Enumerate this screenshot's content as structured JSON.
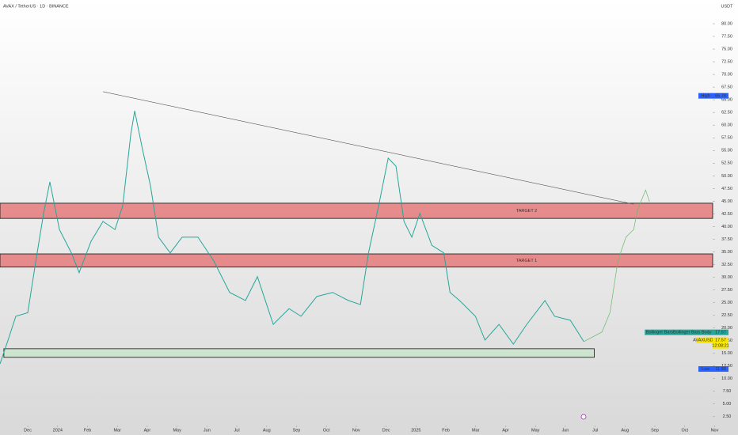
{
  "chart_data": {
    "type": "line",
    "title": "AVAX / TetherUS · 1D · BINANCE",
    "currency": "USDT",
    "x": [
      -0.93,
      -0.66,
      -0.4,
      0,
      0.27,
      0.53,
      0.74,
      1.06,
      1.46,
      1.72,
      2.12,
      2.52,
      2.92,
      3.18,
      3.45,
      3.58,
      3.85,
      4.11,
      4.38,
      4.77,
      5.17,
      5.7,
      6.23,
      6.76,
      7.29,
      7.69,
      8.22,
      8.75,
      9.15,
      9.68,
      10.21,
      10.74,
      11.14,
      11.41,
      11.75,
      12.07,
      12.33,
      12.6,
      12.86,
      13.13,
      13.53,
      13.93,
      14.14,
      14.46,
      14.99,
      15.31,
      15.78,
      16.26,
      16.71,
      17.32,
      17.64,
      18.17,
      18.62
    ],
    "series": [
      {
        "color": "#26a69a",
        "values": [
          12.9,
          17.6,
          22.3,
          23,
          33.2,
          42.6,
          48.8,
          39.4,
          34.8,
          30.9,
          37.1,
          41,
          39.4,
          44.1,
          58.2,
          62.8,
          55,
          48,
          37.9,
          34.8,
          37.9,
          37.9,
          33.2,
          27,
          25.4,
          30.1,
          20.7,
          23.8,
          22.3,
          26.2,
          27,
          25.4,
          24.6,
          34.8,
          44.1,
          53.5,
          51.9,
          41,
          37.9,
          42.6,
          36.3,
          34.8,
          27,
          25.4,
          22.3,
          17.6,
          20.7,
          16.8,
          20.7,
          25.4,
          22.3,
          21.5,
          17.3
        ]
      }
    ],
    "projection": {
      "color": "#66bb6a",
      "x": [
        18.62,
        19.23,
        19.5,
        19.76,
        20.03,
        20.29,
        20.42,
        20.69,
        20.82
      ],
      "values": [
        17.3,
        19.2,
        23.1,
        33.2,
        37.9,
        39.4,
        43.3,
        47.2,
        44.9
      ]
    },
    "xlim": [
      -0.93,
      23.2
    ],
    "ylim": [
      0.75,
      84.68
    ],
    "xticks": [
      {
        "value": 0,
        "label": "Dec"
      },
      {
        "value": 1,
        "label": "2024"
      },
      {
        "value": 2,
        "label": "Feb"
      },
      {
        "value": 3,
        "label": "Mar"
      },
      {
        "value": 4,
        "label": "Apr"
      },
      {
        "value": 5,
        "label": "May"
      },
      {
        "value": 6,
        "label": "Jun"
      },
      {
        "value": 7,
        "label": "Jul"
      },
      {
        "value": 8,
        "label": "Aug"
      },
      {
        "value": 9,
        "label": "Sep"
      },
      {
        "value": 10,
        "label": "Oct"
      },
      {
        "value": 11,
        "label": "Nov"
      },
      {
        "value": 12,
        "label": "Dec"
      },
      {
        "value": 13,
        "label": "2025"
      },
      {
        "value": 14,
        "label": "Feb"
      },
      {
        "value": 15,
        "label": "Mar"
      },
      {
        "value": 16,
        "label": "Apr"
      },
      {
        "value": 17,
        "label": "May"
      },
      {
        "value": 18,
        "label": "Jun"
      },
      {
        "value": 19,
        "label": "Jul"
      },
      {
        "value": 20,
        "label": "Aug"
      },
      {
        "value": 21,
        "label": "Sep"
      },
      {
        "value": 22,
        "label": "Oct"
      },
      {
        "value": 23,
        "label": "Nov"
      }
    ],
    "yticks": [
      {
        "value": 2.5,
        "label": "2.50"
      },
      {
        "value": 5,
        "label": "5.00"
      },
      {
        "value": 7.5,
        "label": "7.50"
      },
      {
        "value": 10,
        "label": "10.00"
      },
      {
        "value": 12.5,
        "label": "12.50"
      },
      {
        "value": 15,
        "label": "15.00"
      },
      {
        "value": 17.5,
        "label": "17.50"
      },
      {
        "value": 20,
        "label": "20.00"
      },
      {
        "value": 22.5,
        "label": "22.50"
      },
      {
        "value": 25,
        "label": "25.00"
      },
      {
        "value": 27.5,
        "label": "27.50"
      },
      {
        "value": 30,
        "label": "30.00"
      },
      {
        "value": 32.5,
        "label": "32.50"
      },
      {
        "value": 35,
        "label": "35.00"
      },
      {
        "value": 37.5,
        "label": "37.50"
      },
      {
        "value": 40,
        "label": "40.00"
      },
      {
        "value": 42.5,
        "label": "42.50"
      },
      {
        "value": 45,
        "label": "45.00"
      },
      {
        "value": 47.5,
        "label": "47.50"
      },
      {
        "value": 50,
        "label": "50.00"
      },
      {
        "value": 52.5,
        "label": "52.50"
      },
      {
        "value": 55,
        "label": "55.00"
      },
      {
        "value": 57.5,
        "label": "57.50"
      },
      {
        "value": 60,
        "label": "60.00"
      },
      {
        "value": 62.5,
        "label": "62.50"
      },
      {
        "value": 65,
        "label": "65.00"
      },
      {
        "value": 67.5,
        "label": "67.50"
      },
      {
        "value": 70,
        "label": "70.00"
      },
      {
        "value": 72.5,
        "label": "72.50"
      },
      {
        "value": 75,
        "label": "75.00"
      },
      {
        "value": 77.5,
        "label": "77.50"
      },
      {
        "value": 80,
        "label": "80.00"
      }
    ],
    "zones": [
      {
        "label": "TARGET 2",
        "range": [
          41.6,
          44.6
        ],
        "color": "#e57373"
      },
      {
        "label": "TARGET 1",
        "range": [
          32.0,
          34.6
        ],
        "color": "#e57373"
      },
      {
        "xrange": [
          -0.8,
          18.97
        ],
        "range": [
          14.2,
          15.9
        ],
        "color": "#c8e6c9"
      }
    ],
    "trendline": {
      "x": [
        2.52,
        20.29
      ],
      "values": [
        66.6,
        44.4
      ]
    },
    "price_labels": [
      {
        "label": "High",
        "value": 65.78,
        "color": "#2962ff"
      },
      {
        "label": "Low",
        "value": 11.9,
        "value_label": "11.90",
        "color": "#2962ff"
      },
      {
        "label": "Bollinger BarsBollinger Bars Body",
        "value": 17.57,
        "color": "#26a69a"
      },
      {
        "label": "AVAXUSDT",
        "value": 17.57,
        "color": "#f7e600",
        "countdown": "12:08:21"
      }
    ]
  }
}
